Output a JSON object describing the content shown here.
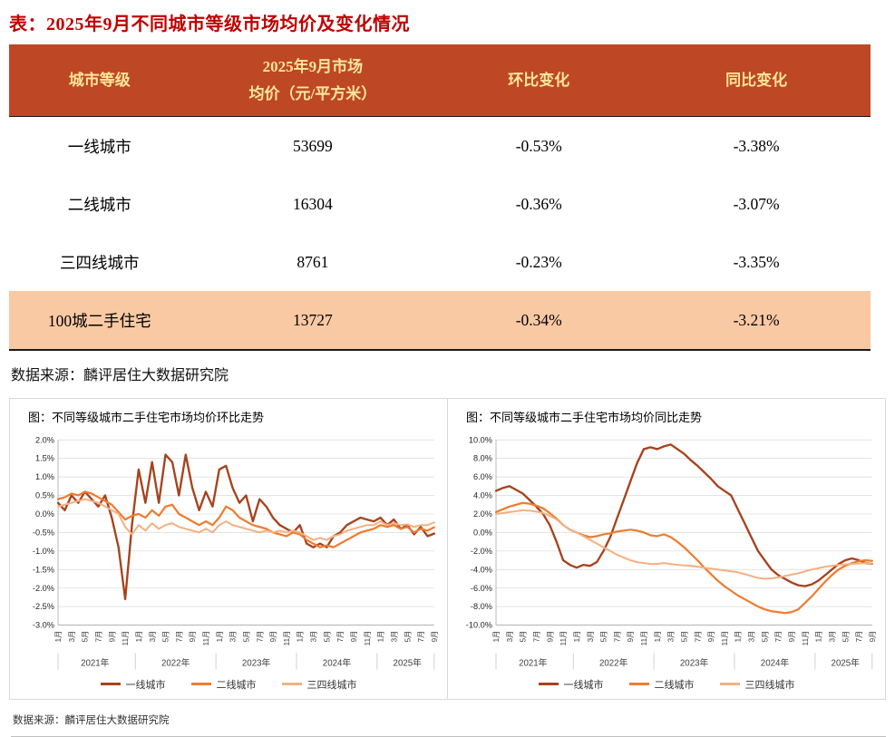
{
  "page": {
    "table_title": "表：2025年9月不同城市等级市场均价及变化情况",
    "source_top": "数据来源：麟评居住大数据研究院",
    "source_bottom": "数据来源：麟评居住大数据研究院"
  },
  "table": {
    "headers": [
      "城市等级",
      "2025年9月市场",
      "均价（元/平方米）",
      "环比变化",
      "同比变化"
    ],
    "rows": [
      {
        "tier": "一线城市",
        "price": "53699",
        "mom": "-0.53%",
        "yoy": "-3.38%"
      },
      {
        "tier": "二线城市",
        "price": "16304",
        "mom": "-0.36%",
        "yoy": "-3.07%"
      },
      {
        "tier": "三四线城市",
        "price": "8761",
        "mom": "-0.23%",
        "yoy": "-3.35%"
      },
      {
        "tier": "100城二手住宅",
        "price": "13727",
        "mom": "-0.34%",
        "yoy": "-3.21%"
      }
    ],
    "colors": {
      "header_bg": "#BE4726",
      "header_text": "#FFE699",
      "highlight_bg": "#F9C9A3",
      "title_red": "#C00000"
    }
  },
  "chart_data": [
    {
      "type": "line",
      "title": "图：不同等级城市二手住宅市场均价环比走势",
      "ylim": [
        -3.0,
        2.0
      ],
      "yticks": [
        2.0,
        1.5,
        1.0,
        0.5,
        0.0,
        -0.5,
        -1.0,
        -1.5,
        -2.0,
        -2.5,
        -3.0
      ],
      "ytick_labels": [
        "2.0%",
        "1.5%",
        "1.0%",
        "0.5%",
        "0.0%",
        "-0.5%",
        "-1.0%",
        "-1.5%",
        "-2.0%",
        "-2.5%",
        "-3.0%"
      ],
      "x_tick_labels": [
        "1月",
        "3月",
        "5月",
        "7月",
        "9月",
        "11月",
        "1月",
        "3月",
        "5月",
        "7月",
        "9月",
        "11月",
        "1月",
        "3月",
        "5月",
        "7月",
        "9月",
        "11月",
        "1月",
        "3月",
        "5月",
        "7月",
        "9月",
        "11月",
        "1月",
        "3月",
        "5月",
        "7月",
        "9月"
      ],
      "year_groups": [
        {
          "label": "2021年",
          "count": 12
        },
        {
          "label": "2022年",
          "count": 12
        },
        {
          "label": "2023年",
          "count": 12
        },
        {
          "label": "2024年",
          "count": 12
        },
        {
          "label": "2025年",
          "count": 9
        }
      ],
      "grid": true,
      "legend_position": "bottom",
      "series": [
        {
          "name": "一线城市",
          "key": "tier1",
          "color": "#A6431D",
          "values": [
            0.3,
            0.1,
            0.5,
            0.3,
            0.6,
            0.4,
            0.2,
            0.5,
            -0.1,
            -0.9,
            -2.3,
            -0.3,
            1.2,
            0.3,
            1.4,
            0.3,
            1.6,
            1.4,
            0.5,
            1.6,
            0.7,
            0.1,
            0.6,
            0.2,
            1.2,
            1.3,
            0.7,
            0.3,
            0.5,
            -0.2,
            0.4,
            0.2,
            -0.1,
            -0.3,
            -0.4,
            -0.5,
            -0.3,
            -0.8,
            -0.9,
            -0.8,
            -0.9,
            -0.6,
            -0.5,
            -0.3,
            -0.2,
            -0.1,
            -0.15,
            -0.2,
            -0.1,
            -0.3,
            -0.15,
            -0.4,
            -0.3,
            -0.55,
            -0.35,
            -0.6,
            -0.53
          ]
        },
        {
          "name": "二线城市",
          "key": "tier2",
          "color": "#ED7D31",
          "values": [
            0.4,
            0.45,
            0.55,
            0.5,
            0.6,
            0.55,
            0.45,
            0.35,
            0.25,
            0.05,
            -0.15,
            -0.05,
            0.0,
            -0.1,
            0.1,
            -0.05,
            0.2,
            0.25,
            0.0,
            -0.1,
            -0.2,
            -0.3,
            -0.2,
            -0.3,
            -0.1,
            0.2,
            0.1,
            -0.1,
            -0.2,
            -0.3,
            -0.35,
            -0.4,
            -0.5,
            -0.55,
            -0.6,
            -0.5,
            -0.55,
            -0.7,
            -0.8,
            -0.9,
            -0.85,
            -0.9,
            -0.8,
            -0.7,
            -0.6,
            -0.5,
            -0.45,
            -0.4,
            -0.3,
            -0.35,
            -0.3,
            -0.4,
            -0.35,
            -0.5,
            -0.4,
            -0.45,
            -0.36
          ]
        },
        {
          "name": "三四线城市",
          "key": "tier3-4",
          "color": "#F4B183",
          "values": [
            0.2,
            0.25,
            0.3,
            0.35,
            0.4,
            0.35,
            0.3,
            0.2,
            0.1,
            0.0,
            -0.35,
            -0.55,
            -0.3,
            -0.45,
            -0.25,
            -0.4,
            -0.3,
            -0.25,
            -0.35,
            -0.4,
            -0.45,
            -0.5,
            -0.4,
            -0.5,
            -0.3,
            -0.2,
            -0.3,
            -0.35,
            -0.4,
            -0.45,
            -0.5,
            -0.45,
            -0.5,
            -0.45,
            -0.5,
            -0.45,
            -0.5,
            -0.6,
            -0.7,
            -0.65,
            -0.7,
            -0.6,
            -0.55,
            -0.45,
            -0.4,
            -0.35,
            -0.3,
            -0.3,
            -0.2,
            -0.3,
            -0.25,
            -0.3,
            -0.28,
            -0.35,
            -0.3,
            -0.3,
            -0.23
          ]
        }
      ]
    },
    {
      "type": "line",
      "title": "图：不同等级城市二手住宅市场均价同比走势",
      "ylim": [
        -10.0,
        10.0
      ],
      "yticks": [
        10.0,
        8.0,
        6.0,
        4.0,
        2.0,
        0.0,
        -2.0,
        -4.0,
        -6.0,
        -8.0,
        -10.0
      ],
      "ytick_labels": [
        "10.0%",
        "8.0%",
        "6.0%",
        "4.0%",
        "2.0%",
        "0.0%",
        "-2.0%",
        "-4.0%",
        "-6.0%",
        "-8.0%",
        "-10.0%"
      ],
      "x_tick_labels": [
        "1月",
        "3月",
        "5月",
        "7月",
        "9月",
        "11月",
        "1月",
        "3月",
        "5月",
        "7月",
        "9月",
        "11月",
        "1月",
        "3月",
        "5月",
        "7月",
        "9月",
        "11月",
        "1月",
        "3月",
        "5月",
        "7月",
        "9月",
        "11月",
        "1月",
        "3月",
        "5月",
        "7月",
        "9月"
      ],
      "year_groups": [
        {
          "label": "2021年",
          "count": 12
        },
        {
          "label": "2022年",
          "count": 12
        },
        {
          "label": "2023年",
          "count": 12
        },
        {
          "label": "2024年",
          "count": 12
        },
        {
          "label": "2025年",
          "count": 9
        }
      ],
      "grid": true,
      "legend_position": "bottom",
      "series": [
        {
          "name": "一线城市",
          "key": "tier1",
          "color": "#A6431D",
          "values": [
            4.5,
            4.8,
            5.0,
            4.6,
            4.2,
            3.5,
            2.8,
            2.0,
            0.8,
            -1.0,
            -3.0,
            -3.5,
            -3.8,
            -3.5,
            -3.6,
            -3.2,
            -2.0,
            -0.5,
            1.5,
            3.5,
            5.5,
            7.5,
            9.0,
            9.2,
            9.0,
            9.3,
            9.5,
            9.0,
            8.5,
            7.8,
            7.2,
            6.5,
            5.8,
            5.0,
            4.5,
            4.0,
            2.5,
            1.0,
            -0.5,
            -2.0,
            -3.0,
            -4.0,
            -4.6,
            -5.0,
            -5.4,
            -5.7,
            -5.8,
            -5.6,
            -5.2,
            -4.6,
            -4.0,
            -3.4,
            -3.0,
            -2.8,
            -3.0,
            -3.3,
            -3.38
          ]
        },
        {
          "name": "二线城市",
          "key": "tier2",
          "color": "#ED7D31",
          "values": [
            2.2,
            2.5,
            2.8,
            3.0,
            3.2,
            3.1,
            2.9,
            2.6,
            2.1,
            1.5,
            0.8,
            0.3,
            0.0,
            -0.3,
            -0.5,
            -0.4,
            -0.2,
            -0.1,
            0.1,
            0.2,
            0.3,
            0.2,
            0.0,
            -0.3,
            -0.4,
            -0.2,
            -0.5,
            -1.0,
            -1.6,
            -2.3,
            -3.0,
            -3.8,
            -4.5,
            -5.2,
            -5.8,
            -6.3,
            -6.8,
            -7.2,
            -7.6,
            -8.0,
            -8.3,
            -8.5,
            -8.6,
            -8.7,
            -8.6,
            -8.3,
            -7.6,
            -6.9,
            -6.1,
            -5.3,
            -4.6,
            -4.0,
            -3.6,
            -3.3,
            -3.1,
            -3.0,
            -3.07
          ]
        },
        {
          "name": "三四线城市",
          "key": "tier3-4",
          "color": "#F4B183",
          "values": [
            2.0,
            2.1,
            2.2,
            2.3,
            2.4,
            2.35,
            2.25,
            2.1,
            1.8,
            1.4,
            0.8,
            0.3,
            0.0,
            -0.4,
            -0.8,
            -1.2,
            -1.6,
            -2.0,
            -2.4,
            -2.7,
            -3.0,
            -3.2,
            -3.3,
            -3.4,
            -3.4,
            -3.3,
            -3.4,
            -3.5,
            -3.55,
            -3.6,
            -3.7,
            -3.8,
            -3.9,
            -4.0,
            -4.1,
            -4.2,
            -4.3,
            -4.5,
            -4.7,
            -4.9,
            -5.0,
            -4.95,
            -4.85,
            -4.7,
            -4.55,
            -4.4,
            -4.2,
            -4.0,
            -3.85,
            -3.7,
            -3.6,
            -3.5,
            -3.45,
            -3.4,
            -3.35,
            -3.3,
            -3.35
          ]
        }
      ]
    }
  ]
}
